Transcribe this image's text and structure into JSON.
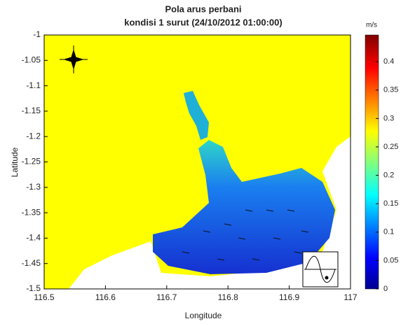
{
  "chart_data": {
    "type": "map",
    "title": "Pola arus perbani",
    "subtitle": "kondisi 1 surut (24/10/2012 01:00:00)",
    "x_label": "Longitude",
    "y_label": "Latitude",
    "xlim": [
      116.5,
      117
    ],
    "xticks": [
      116.5,
      116.6,
      116.7,
      116.8,
      116.9,
      117
    ],
    "ylim": [
      -1.5,
      -1
    ],
    "yticks": [
      -1,
      -1.05,
      -1.1,
      -1.15,
      -1.2,
      -1.25,
      -1.3,
      -1.35,
      -1.4,
      -1.45,
      -1.5
    ],
    "colorbar": {
      "label": "m/s",
      "lim": [
        0,
        0.447
      ],
      "ticks": [
        0,
        0.05,
        0.1,
        0.15,
        0.2,
        0.25,
        0.3,
        0.35,
        0.4
      ]
    }
  }
}
